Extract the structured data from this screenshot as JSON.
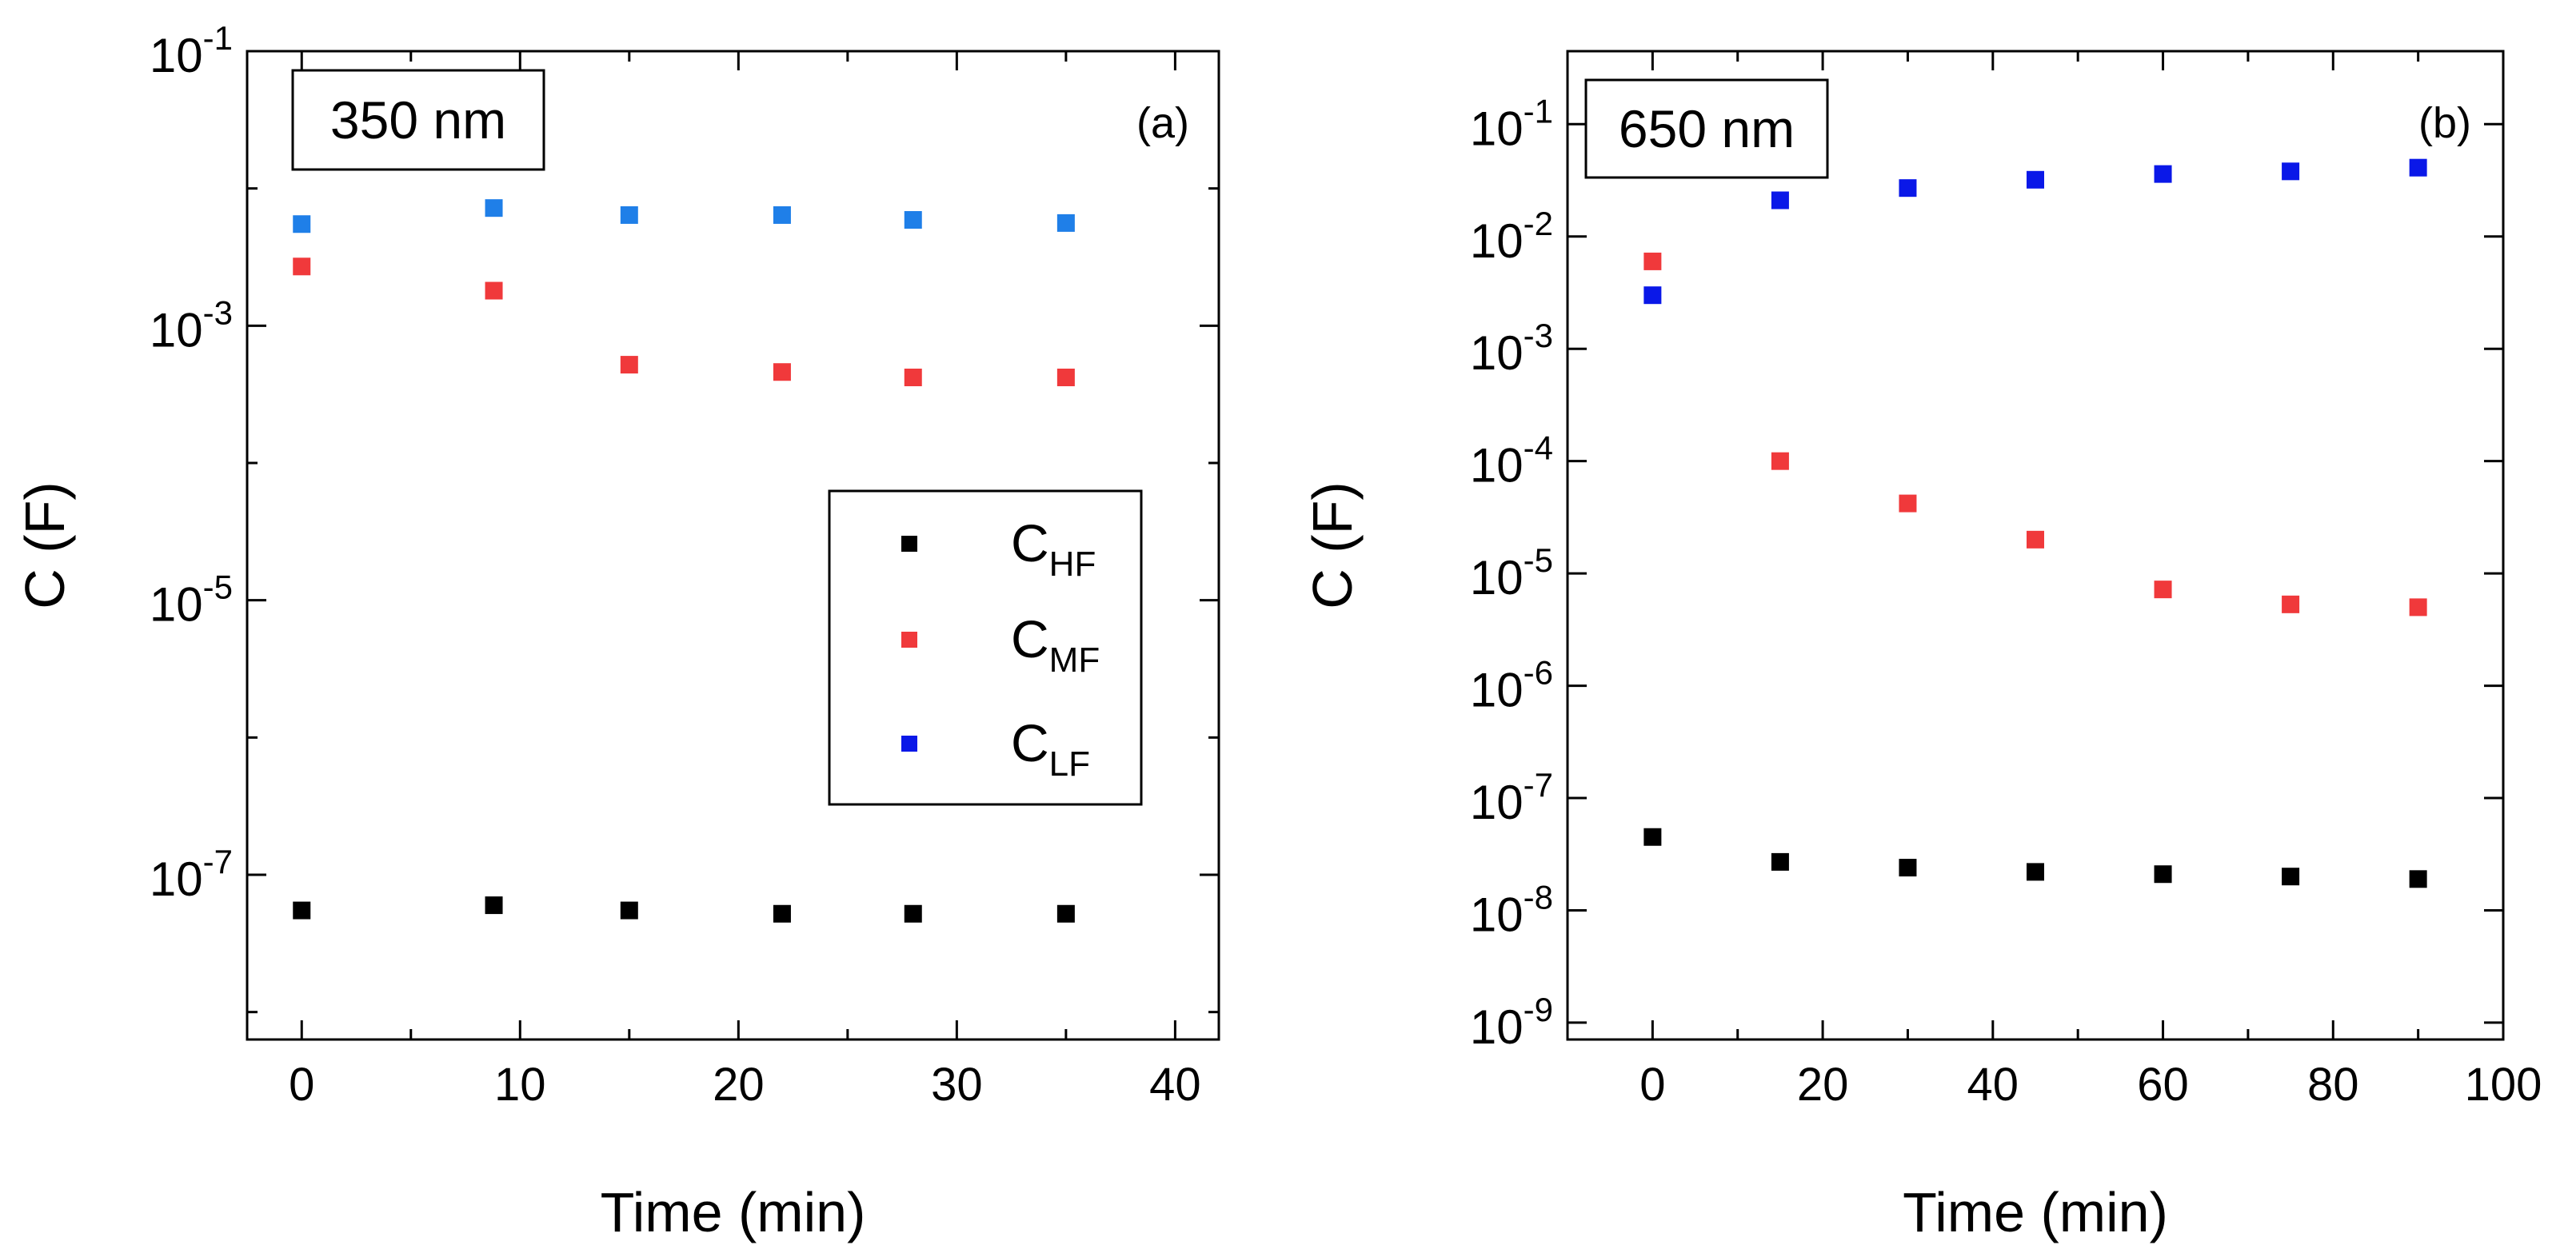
{
  "chart_data": [
    {
      "type": "scatter",
      "panel_label": "(a)",
      "annotation": "350 nm",
      "xlabel": "Time (min)",
      "ylabel": "C (F)",
      "yscale": "log",
      "xlim": [
        -2.5,
        42
      ],
      "ylim_exp": [
        -8.2,
        -1
      ],
      "x_ticks": [
        0,
        10,
        20,
        30,
        40
      ],
      "x_tick_labels": [
        "0",
        "10",
        "20",
        "30",
        "40"
      ],
      "y_ticks": [
        {
          "exp": -1,
          "base": "10",
          "sup": "-1"
        },
        {
          "exp": -3,
          "base": "10",
          "sup": "-3"
        },
        {
          "exp": -5,
          "base": "10",
          "sup": "-5"
        },
        {
          "exp": -7,
          "base": "10",
          "sup": "-7"
        }
      ],
      "y_minor_exps": [
        -2,
        -4,
        -6,
        -8
      ],
      "legend": {
        "position": "center-right",
        "entries": [
          {
            "base": "C",
            "sub": "HF",
            "color": "#000000"
          },
          {
            "base": "C",
            "sub": "MF",
            "color": "#f0393b"
          },
          {
            "base": "C",
            "sub": "LF",
            "color": "#0a18e8"
          }
        ]
      },
      "series": [
        {
          "name": "C_HF",
          "color": "#000000",
          "x": [
            0,
            8.8,
            15,
            22,
            28,
            35
          ],
          "y": [
            5.5e-08,
            6e-08,
            5.5e-08,
            5.2e-08,
            5.2e-08,
            5.2e-08
          ]
        },
        {
          "name": "C_MF",
          "color": "#f0393b",
          "x": [
            0,
            8.8,
            15,
            22,
            28,
            35
          ],
          "y": [
            0.0027,
            0.0018,
            0.00052,
            0.00046,
            0.00042,
            0.00042
          ]
        },
        {
          "name": "C_LF",
          "color": "#1f7fe8",
          "x": [
            0,
            8.8,
            15,
            22,
            28,
            35
          ],
          "y": [
            0.0055,
            0.0072,
            0.0064,
            0.0064,
            0.0059,
            0.0056
          ]
        }
      ]
    },
    {
      "type": "scatter",
      "panel_label": "(b)",
      "annotation": "650 nm",
      "xlabel": "Time (min)",
      "ylabel": "C (F)",
      "yscale": "log",
      "xlim": [
        -10,
        100
      ],
      "ylim_exp": [
        -9.15,
        -0.35
      ],
      "x_ticks": [
        0,
        20,
        40,
        60,
        80,
        100
      ],
      "x_tick_labels": [
        "0",
        "20",
        "40",
        "60",
        "80",
        "100"
      ],
      "y_ticks": [
        {
          "exp": -1,
          "base": "10",
          "sup": "-1"
        },
        {
          "exp": -2,
          "base": "10",
          "sup": "-2"
        },
        {
          "exp": -3,
          "base": "10",
          "sup": "-3"
        },
        {
          "exp": -4,
          "base": "10",
          "sup": "-4"
        },
        {
          "exp": -5,
          "base": "10",
          "sup": "-5"
        },
        {
          "exp": -6,
          "base": "10",
          "sup": "-6"
        },
        {
          "exp": -7,
          "base": "10",
          "sup": "-7"
        },
        {
          "exp": -8,
          "base": "10",
          "sup": "-8"
        },
        {
          "exp": -9,
          "base": "10",
          "sup": "-9"
        }
      ],
      "y_minor_exps": [],
      "series": [
        {
          "name": "C_HF",
          "color": "#000000",
          "x": [
            0,
            15,
            30,
            45,
            60,
            75,
            90
          ],
          "y": [
            4.5e-08,
            2.7e-08,
            2.4e-08,
            2.2e-08,
            2.1e-08,
            2e-08,
            1.9e-08
          ]
        },
        {
          "name": "C_MF",
          "color": "#f0393b",
          "x": [
            0,
            15,
            30,
            45,
            60,
            75,
            90
          ],
          "y": [
            0.006,
            0.0001,
            4.2e-05,
            2e-05,
            7.2e-06,
            5.3e-06,
            5e-06
          ]
        },
        {
          "name": "C_LF",
          "color": "#0a18e8",
          "x": [
            0,
            15,
            30,
            45,
            60,
            75,
            90
          ],
          "y": [
            0.003,
            0.021,
            0.027,
            0.032,
            0.036,
            0.038,
            0.041
          ]
        }
      ]
    }
  ]
}
